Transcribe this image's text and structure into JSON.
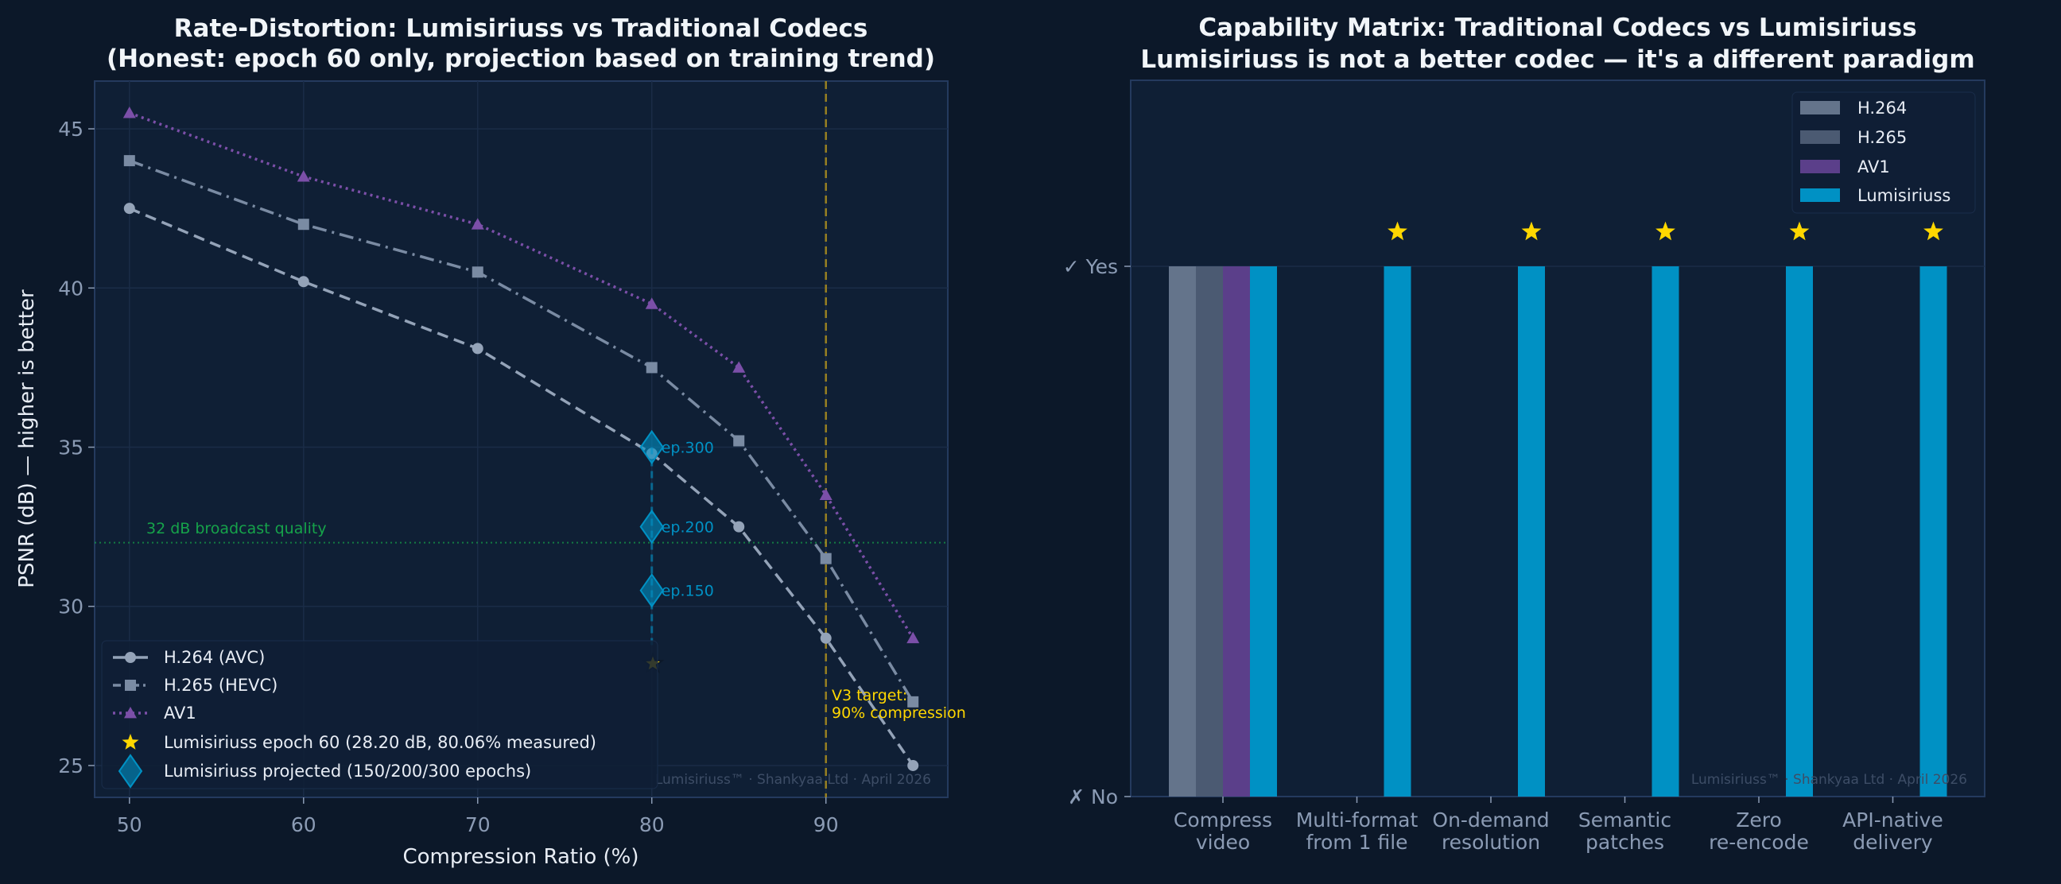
{
  "colors": {
    "background": "#0c1829",
    "axes": "#0f1f35",
    "h264": "#94a3b8",
    "h265": "#7a8ba3",
    "av1": "#7b4fa8",
    "lumi": "#0091c4",
    "star": "#ffd700",
    "broadcast": "#16a34a",
    "target": "#b8961a"
  },
  "chart_data": [
    {
      "type": "line",
      "title": "Rate-Distortion: Lumisiriuss vs Traditional Codecs",
      "subtitle": "(Honest: epoch 60 only, projection based on training trend)",
      "xlabel": "Compression Ratio (%)",
      "ylabel": "PSNR (dB)  —  higher is better",
      "xlim": [
        48,
        97
      ],
      "ylim": [
        24,
        46.5
      ],
      "xticks": [
        "50",
        "60",
        "70",
        "80",
        "90"
      ],
      "yticks": [
        "25",
        "30",
        "35",
        "40",
        "45"
      ],
      "grid": true,
      "legend_position": "lower-left",
      "x": [
        50,
        60,
        70,
        80,
        85,
        90,
        95
      ],
      "series": [
        {
          "name": "H.264 (AVC)",
          "values": [
            42.5,
            40.2,
            38.1,
            34.8,
            32.5,
            29.0,
            25.0
          ],
          "marker": "circle",
          "style": "dashed"
        },
        {
          "name": "H.265 (HEVC)",
          "values": [
            44.0,
            42.0,
            40.5,
            37.5,
            35.2,
            31.5,
            27.0
          ],
          "marker": "square",
          "style": "dashdot"
        },
        {
          "name": "AV1",
          "values": [
            45.5,
            43.5,
            42.0,
            39.5,
            37.5,
            33.5,
            29.0
          ],
          "marker": "triangle",
          "style": "dotted"
        }
      ],
      "measured": {
        "name": "Lumisiriuss epoch 60 (28.20 dB, 80.06% measured)",
        "x": 80.06,
        "y": 28.2
      },
      "projected": {
        "name": "Lumisiriuss projected (150/200/300 epochs)",
        "x": 80,
        "points": [
          {
            "label": "ep.150",
            "y": 30.5
          },
          {
            "label": "ep.200",
            "y": 32.5
          },
          {
            "label": "ep.300",
            "y": 35.0
          }
        ]
      },
      "reference_line": {
        "y": 32,
        "label": "32 dB broadcast quality"
      },
      "target_line": {
        "x": 90,
        "label_line1": "V3 target:",
        "label_line2": "90% compression"
      },
      "watermark": "Lumisiriuss™ · Shankyaa Ltd · April 2026"
    },
    {
      "type": "bar",
      "title": "Capability Matrix: Traditional Codecs vs Lumisiriuss",
      "subtitle": "Lumisiriuss is not a better codec — it's a different paradigm",
      "categories": [
        [
          "Compress",
          "video"
        ],
        [
          "Multi-format",
          "from 1 file"
        ],
        [
          "On-demand",
          "resolution"
        ],
        [
          "Semantic",
          "patches"
        ],
        [
          "Zero",
          "re-encode"
        ],
        [
          "API-native",
          "delivery"
        ]
      ],
      "yticks": [
        "✗ No",
        "✓ Yes"
      ],
      "ylim": [
        0,
        1.35
      ],
      "legend_position": "top-right",
      "series": [
        {
          "name": "H.264",
          "values": [
            1,
            0,
            0,
            0,
            0,
            0
          ],
          "color": "#64748b"
        },
        {
          "name": "H.265",
          "values": [
            1,
            0,
            0,
            0,
            0,
            0
          ],
          "color": "#4b5a72"
        },
        {
          "name": "AV1",
          "values": [
            1,
            0,
            0,
            0,
            0,
            0
          ],
          "color": "#5b3f8a"
        },
        {
          "name": "Lumisiriuss",
          "values": [
            1,
            1,
            1,
            1,
            1,
            1
          ],
          "color": "#0091c4"
        }
      ],
      "star_markers": [
        false,
        true,
        true,
        true,
        true,
        true
      ],
      "watermark": "Lumisiriuss™ · Shankyaa Ltd · April 2026"
    }
  ]
}
